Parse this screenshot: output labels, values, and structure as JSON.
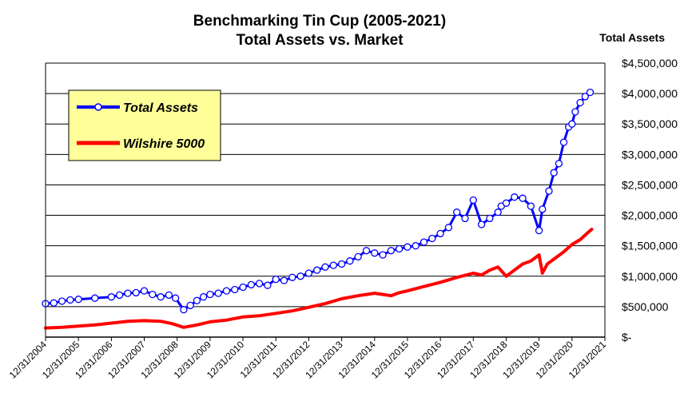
{
  "chart_data": {
    "type": "line",
    "title": "Benchmarking Tin Cup (2005-2021)",
    "subtitle": "Total Assets vs. Market",
    "ylabel": "Total Assets",
    "ylim": [
      0,
      4500000
    ],
    "ytick_values": [
      0,
      500000,
      1000000,
      1500000,
      2000000,
      2500000,
      3000000,
      3500000,
      4000000,
      4500000
    ],
    "ytick_labels": [
      "$-",
      "$500,000",
      "$1,000,000",
      "$1,500,000",
      "$2,000,000",
      "$2,500,000",
      "$3,000,000",
      "$3,500,000",
      "$4,000,000",
      "$4,500,000"
    ],
    "xlim": [
      2005,
      2022
    ],
    "xtick_values": [
      2005,
      2006,
      2007,
      2008,
      2009,
      2010,
      2011,
      2012,
      2013,
      2014,
      2015,
      2016,
      2017,
      2018,
      2019,
      2020,
      2021,
      2022
    ],
    "xtick_labels": [
      "12/31/2004",
      "12/31/2005",
      "12/31/2006",
      "12/31/2007",
      "12/31/2008",
      "12/31/2009",
      "12/31/2010",
      "12/31/2011",
      "12/31/2012",
      "12/31/2013",
      "12/31/2014",
      "12/31/2015",
      "12/31/2016",
      "12/31/2017",
      "12/31/2018",
      "12/31/2019",
      "12/31/2020",
      "12/31/2021"
    ],
    "grid": true,
    "legend_position": "top-left",
    "series": [
      {
        "name": "Total Assets",
        "color": "#0000ff",
        "marker": "circle",
        "x": [
          2005.0,
          2005.25,
          2005.5,
          2005.75,
          2006.0,
          2006.5,
          2007.0,
          2007.25,
          2007.5,
          2007.75,
          2008.0,
          2008.25,
          2008.5,
          2008.75,
          2008.95,
          2009.2,
          2009.4,
          2009.6,
          2009.8,
          2010.0,
          2010.25,
          2010.5,
          2010.75,
          2011.0,
          2011.25,
          2011.5,
          2011.75,
          2012.0,
          2012.25,
          2012.5,
          2012.75,
          2013.0,
          2013.25,
          2013.5,
          2013.75,
          2014.0,
          2014.25,
          2014.5,
          2014.75,
          2015.0,
          2015.25,
          2015.5,
          2015.75,
          2016.0,
          2016.25,
          2016.5,
          2016.75,
          2017.0,
          2017.25,
          2017.5,
          2017.75,
          2018.0,
          2018.25,
          2018.5,
          2018.75,
          2018.85,
          2019.0,
          2019.25,
          2019.5,
          2019.75,
          2020.0,
          2020.1,
          2020.3,
          2020.45,
          2020.6,
          2020.75,
          2020.9,
          2021.0,
          2021.1,
          2021.25,
          2021.4,
          2021.55
        ],
        "values": [
          550000,
          560000,
          590000,
          610000,
          620000,
          640000,
          660000,
          690000,
          720000,
          730000,
          760000,
          700000,
          660000,
          690000,
          640000,
          450000,
          520000,
          600000,
          660000,
          700000,
          720000,
          760000,
          780000,
          820000,
          860000,
          880000,
          850000,
          950000,
          930000,
          980000,
          1000000,
          1050000,
          1100000,
          1150000,
          1180000,
          1200000,
          1250000,
          1320000,
          1420000,
          1380000,
          1350000,
          1420000,
          1450000,
          1480000,
          1500000,
          1560000,
          1620000,
          1700000,
          1800000,
          2050000,
          1950000,
          2250000,
          1850000,
          1950000,
          2050000,
          2150000,
          2200000,
          2300000,
          2280000,
          2150000,
          1750000,
          2100000,
          2400000,
          2700000,
          2850000,
          3200000,
          3450000,
          3500000,
          3700000,
          3850000,
          3950000,
          4020000
        ]
      },
      {
        "name": "Wilshire 5000",
        "color": "#ff0000",
        "x": [
          2005.0,
          2005.5,
          2006.0,
          2006.5,
          2007.0,
          2007.5,
          2008.0,
          2008.5,
          2008.85,
          2009.2,
          2009.6,
          2010.0,
          2010.5,
          2011.0,
          2011.5,
          2012.0,
          2012.5,
          2013.0,
          2013.5,
          2014.0,
          2014.5,
          2015.0,
          2015.25,
          2015.5,
          2015.75,
          2016.0,
          2016.5,
          2017.0,
          2017.5,
          2018.0,
          2018.25,
          2018.5,
          2018.75,
          2019.0,
          2019.25,
          2019.5,
          2019.75,
          2020.0,
          2020.1,
          2020.25,
          2020.5,
          2020.75,
          2021.0,
          2021.25,
          2021.45,
          2021.6
        ],
        "values": [
          150000,
          160000,
          180000,
          200000,
          230000,
          260000,
          270000,
          260000,
          220000,
          160000,
          200000,
          250000,
          280000,
          330000,
          350000,
          390000,
          430000,
          490000,
          550000,
          630000,
          680000,
          720000,
          700000,
          680000,
          730000,
          760000,
          830000,
          900000,
          980000,
          1050000,
          1020000,
          1100000,
          1150000,
          1000000,
          1100000,
          1200000,
          1250000,
          1350000,
          1050000,
          1200000,
          1300000,
          1400000,
          1520000,
          1600000,
          1700000,
          1770000
        ]
      }
    ]
  }
}
